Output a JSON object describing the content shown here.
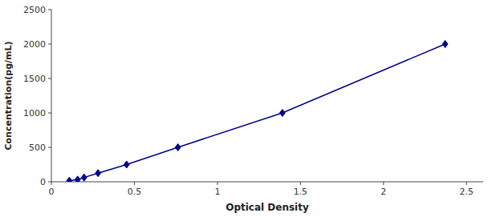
{
  "chart_data": {
    "type": "line",
    "x": [
      0.108,
      0.158,
      0.197,
      0.281,
      0.453,
      0.762,
      1.391,
      2.371
    ],
    "values": [
      15.6,
      31.2,
      62.5,
      125,
      250,
      500,
      1000,
      2000
    ],
    "color": "#00008B",
    "marker": "diamond",
    "line_style": "solid",
    "xlabel": "Optical Density",
    "ylabel": "Concentration(pg/mL)",
    "xlim": [
      0,
      2.6
    ],
    "ylim": [
      0,
      2500
    ],
    "xticks": [
      0,
      0.5,
      1,
      1.5,
      2,
      2.5
    ],
    "yticks": [
      0,
      500,
      1000,
      1500,
      2000,
      2500
    ],
    "grid": false
  }
}
